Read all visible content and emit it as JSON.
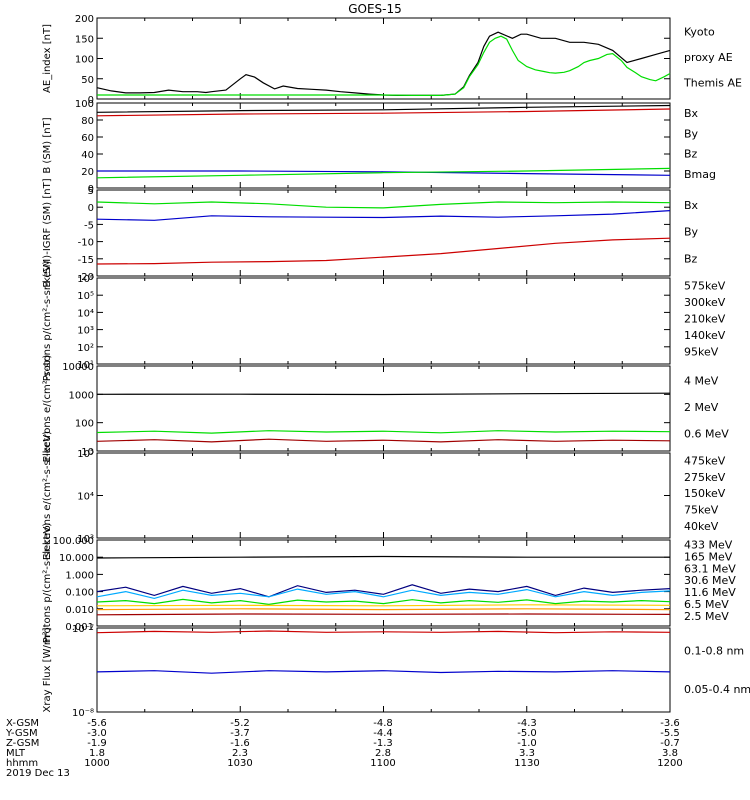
{
  "title": "GOES-15",
  "colors": {
    "black": "#000000",
    "red": "#cc0000",
    "darkred": "#a00000",
    "green": "#00dd00",
    "blue": "#0000cc",
    "orange": "#ff9900",
    "gold": "#ffcc00",
    "cyan": "#00aaff",
    "navy": "#000080",
    "purple": "#8800aa"
  },
  "chart_data": [
    {
      "type": "line",
      "id": "ae",
      "ylabel": "AE_index [nT]",
      "ylim": [
        0,
        200
      ],
      "ticks": [
        "0",
        "50",
        "100",
        "150",
        "200"
      ],
      "legend": [
        {
          "label": "Kyoto",
          "color": "green"
        },
        {
          "label": "proxy AE",
          "color": "green"
        },
        {
          "label": "Themis AE",
          "color": "black"
        }
      ],
      "series": [
        {
          "name": "Themis AE",
          "color": "black",
          "x": [
            0,
            5,
            10,
            15,
            20,
            25,
            30,
            35,
            38,
            40,
            45,
            50,
            52,
            55,
            58,
            62,
            65,
            70,
            75,
            80,
            85,
            90,
            95,
            100,
            105,
            110,
            115,
            120,
            125,
            128,
            130,
            133,
            135,
            137,
            140,
            145,
            148,
            150,
            155,
            160,
            165,
            170,
            175,
            180,
            185,
            190,
            195,
            200
          ],
          "y": [
            28,
            20,
            15,
            15,
            16,
            22,
            18,
            18,
            16,
            18,
            22,
            50,
            60,
            54,
            40,
            25,
            32,
            26,
            24,
            22,
            18,
            15,
            12,
            10,
            9,
            9,
            9,
            9,
            12,
            30,
            58,
            90,
            130,
            155,
            165,
            150,
            160,
            160,
            150,
            150,
            140,
            140,
            135,
            120,
            90,
            100,
            110,
            120
          ]
        },
        {
          "name": "Kyoto proxy AE",
          "color": "green",
          "x": [
            0,
            20,
            40,
            60,
            80,
            100,
            110,
            120,
            125,
            128,
            130,
            133,
            135,
            137,
            139,
            141,
            143,
            145,
            147,
            150,
            153,
            156,
            158,
            160,
            163,
            165,
            168,
            170,
            172,
            175,
            178,
            180,
            183,
            185,
            188,
            190,
            193,
            195,
            198,
            200
          ],
          "y": [
            10,
            10,
            10,
            10,
            10,
            10,
            9,
            9,
            12,
            28,
            55,
            85,
            115,
            140,
            150,
            155,
            148,
            120,
            95,
            80,
            72,
            68,
            65,
            64,
            66,
            70,
            80,
            90,
            95,
            100,
            110,
            112,
            95,
            78,
            65,
            55,
            48,
            45,
            55,
            63
          ]
        }
      ]
    },
    {
      "type": "line",
      "id": "bsm",
      "ylabel": "B (SM) [nT]",
      "ylim": [
        0,
        100
      ],
      "ticks": [
        "0",
        "20",
        "40",
        "60",
        "80",
        "100"
      ],
      "legend": [
        {
          "label": "Bx",
          "color": "blue"
        },
        {
          "label": "By",
          "color": "green"
        },
        {
          "label": "Bz",
          "color": "red"
        },
        {
          "label": "Bmag",
          "color": "black"
        }
      ],
      "series": [
        {
          "name": "Bx",
          "color": "blue",
          "x": [
            0,
            50,
            100,
            150,
            200
          ],
          "y": [
            20,
            20,
            19,
            17,
            15
          ]
        },
        {
          "name": "By",
          "color": "green",
          "x": [
            0,
            50,
            100,
            150,
            200
          ],
          "y": [
            12,
            15,
            18,
            20,
            23
          ]
        },
        {
          "name": "Bz",
          "color": "red",
          "x": [
            0,
            50,
            100,
            150,
            200
          ],
          "y": [
            85,
            87,
            88,
            90,
            93
          ]
        },
        {
          "name": "Bmag",
          "color": "black",
          "x": [
            0,
            50,
            100,
            150,
            200
          ],
          "y": [
            89,
            91,
            92,
            95,
            97
          ]
        }
      ]
    },
    {
      "type": "line",
      "id": "bigrf",
      "ylabel": "B (SM)-IGRF (SM) [nT]",
      "ylim": [
        -20,
        5
      ],
      "ticks": [
        "-20",
        "-15",
        "-10",
        "-5",
        "0",
        "5"
      ],
      "legend": [
        {
          "label": "Bx",
          "color": "blue"
        },
        {
          "label": "By",
          "color": "green"
        },
        {
          "label": "Bz",
          "color": "red"
        }
      ],
      "series": [
        {
          "name": "Bx",
          "color": "blue",
          "x": [
            0,
            20,
            40,
            60,
            80,
            100,
            120,
            140,
            160,
            180,
            200
          ],
          "y": [
            -3.5,
            -3.8,
            -2.5,
            -2.8,
            -2.9,
            -3.0,
            -2.6,
            -2.9,
            -2.5,
            -2.0,
            -1.0
          ]
        },
        {
          "name": "By",
          "color": "green",
          "x": [
            0,
            20,
            40,
            60,
            80,
            100,
            120,
            140,
            160,
            180,
            200
          ],
          "y": [
            1.5,
            1.0,
            1.5,
            1.0,
            0.0,
            -0.2,
            0.8,
            1.5,
            1.3,
            1.5,
            1.3
          ]
        },
        {
          "name": "Bz",
          "color": "red",
          "x": [
            0,
            20,
            40,
            60,
            80,
            100,
            120,
            140,
            160,
            180,
            200
          ],
          "y": [
            -16.5,
            -16.4,
            -16.0,
            -15.8,
            -15.5,
            -14.5,
            -13.5,
            -12,
            -10.5,
            -9.5,
            -9
          ]
        }
      ]
    },
    {
      "type": "line",
      "id": "protons1",
      "log": true,
      "ylabel": "Protons p/(cm²-s-sr-keV)",
      "ylim": [
        10,
        1000000
      ],
      "ticks": [
        "10¹",
        "10²",
        "10³",
        "10⁴",
        "10⁵",
        "10⁶"
      ],
      "legend": [
        {
          "label": "575keV",
          "color": "darkred"
        },
        {
          "label": "300keV",
          "color": "orange"
        },
        {
          "label": "210keV",
          "color": "green"
        },
        {
          "label": "140keV",
          "color": "cyan"
        },
        {
          "label": "95keV",
          "color": "black"
        }
      ],
      "series": []
    },
    {
      "type": "line",
      "id": "electrons1",
      "log": true,
      "ylabel": "Electrons e/(cm²-s-sr)",
      "ylim": [
        10,
        10000
      ],
      "ticks": [
        "10",
        "100",
        "1000",
        "10000"
      ],
      "legend": [
        {
          "label": "4 MeV",
          "color": "darkred"
        },
        {
          "label": "2 MeV",
          "color": "green"
        },
        {
          "label": "0.6 MeV",
          "color": "black"
        }
      ],
      "series": [
        {
          "name": "0.6 MeV",
          "color": "black",
          "x": [
            0,
            50,
            100,
            150,
            200
          ],
          "y": [
            1000,
            1010,
            990,
            1050,
            1100
          ]
        },
        {
          "name": "2 MeV",
          "color": "green",
          "x": [
            0,
            20,
            40,
            60,
            80,
            100,
            120,
            140,
            160,
            180,
            200
          ],
          "y": [
            45,
            50,
            43,
            52,
            47,
            50,
            44,
            52,
            47,
            50,
            48
          ]
        },
        {
          "name": "4 MeV",
          "color": "darkred",
          "x": [
            0,
            20,
            40,
            60,
            80,
            100,
            120,
            140,
            160,
            180,
            200
          ],
          "y": [
            22,
            25,
            21,
            26,
            22,
            24,
            21,
            25,
            22,
            24,
            23
          ]
        }
      ]
    },
    {
      "type": "line",
      "id": "electrons2",
      "log": true,
      "ylabel": "Electrons e/(cm²-s-sr-keV)",
      "ylim": [
        1000,
        100000
      ],
      "ticks": [
        "10³",
        "10⁴",
        "10⁵"
      ],
      "legend": [
        {
          "label": "475keV",
          "color": "darkred"
        },
        {
          "label": "275keV",
          "color": "orange"
        },
        {
          "label": "150keV",
          "color": "green"
        },
        {
          "label": "75keV",
          "color": "blue"
        },
        {
          "label": "40keV",
          "color": "black"
        }
      ],
      "series": []
    },
    {
      "type": "line",
      "id": "protons2",
      "log": true,
      "ylabel": "Protons p/(cm²-s-sr-keV)",
      "ylim": [
        0.001,
        100
      ],
      "ticks": [
        "0.001",
        "0.010",
        "0.100",
        "1.000",
        "10.000",
        "100.000"
      ],
      "legend": [
        {
          "label": "433 MeV",
          "color": "darkred"
        },
        {
          "label": "165 MeV",
          "color": "orange"
        },
        {
          "label": "63.1 MeV",
          "color": "gold"
        },
        {
          "label": "30.6 MeV",
          "color": "green"
        },
        {
          "label": "11.6 MeV",
          "color": "cyan"
        },
        {
          "label": "6.5 MeV",
          "color": "purple"
        },
        {
          "label": "2.5 MeV",
          "color": "black"
        }
      ],
      "series": [
        {
          "name": "2.5 MeV",
          "color": "black",
          "x": [
            0,
            50,
            100,
            150,
            200
          ],
          "y": [
            9,
            10,
            11,
            10,
            10
          ]
        },
        {
          "name": "6.5 MeV",
          "color": "navy",
          "x": [
            0,
            10,
            20,
            30,
            40,
            50,
            60,
            70,
            80,
            90,
            100,
            110,
            120,
            130,
            140,
            150,
            160,
            170,
            180,
            190,
            200
          ],
          "y": [
            0.1,
            0.18,
            0.06,
            0.2,
            0.08,
            0.15,
            0.05,
            0.22,
            0.09,
            0.12,
            0.07,
            0.25,
            0.08,
            0.14,
            0.1,
            0.2,
            0.06,
            0.16,
            0.09,
            0.12,
            0.15
          ]
        },
        {
          "name": "11.6 MeV",
          "color": "cyan",
          "x": [
            0,
            10,
            20,
            30,
            40,
            50,
            60,
            70,
            80,
            90,
            100,
            110,
            120,
            130,
            140,
            150,
            160,
            170,
            180,
            190,
            200
          ],
          "y": [
            0.05,
            0.1,
            0.04,
            0.12,
            0.06,
            0.08,
            0.05,
            0.14,
            0.07,
            0.1,
            0.05,
            0.12,
            0.06,
            0.09,
            0.07,
            0.13,
            0.05,
            0.1,
            0.06,
            0.09,
            0.11
          ]
        },
        {
          "name": "30.6 MeV",
          "color": "green",
          "x": [
            0,
            10,
            20,
            30,
            40,
            50,
            60,
            70,
            80,
            90,
            100,
            110,
            120,
            130,
            140,
            150,
            160,
            170,
            180,
            190,
            200
          ],
          "y": [
            0.025,
            0.03,
            0.02,
            0.035,
            0.022,
            0.03,
            0.018,
            0.032,
            0.025,
            0.028,
            0.02,
            0.034,
            0.022,
            0.03,
            0.024,
            0.033,
            0.02,
            0.028,
            0.025,
            0.03,
            0.026
          ]
        },
        {
          "name": "63.1 MeV",
          "color": "gold",
          "x": [
            0,
            50,
            100,
            150,
            200
          ],
          "y": [
            0.015,
            0.016,
            0.015,
            0.017,
            0.016
          ]
        },
        {
          "name": "165 MeV",
          "color": "orange",
          "x": [
            0,
            50,
            100,
            150,
            200
          ],
          "y": [
            0.009,
            0.01,
            0.009,
            0.01,
            0.009
          ]
        },
        {
          "name": "433 MeV",
          "color": "darkred",
          "x": [
            0,
            50,
            100,
            150,
            200
          ],
          "y": [
            0.0045,
            0.005,
            0.0048,
            0.005,
            0.0047
          ]
        }
      ]
    },
    {
      "type": "line",
      "id": "xray",
      "log": true,
      "ylabel": "Xray Flux [W/m²]",
      "ylim": [
        1e-08,
        1e-07
      ],
      "ticks": [
        "10⁻⁸",
        "10⁻⁷"
      ],
      "legend": [
        {
          "label": "0.1-0.8 nm",
          "color": "red"
        },
        {
          "label": "0.05-0.4 nm",
          "color": "blue"
        }
      ],
      "series": [
        {
          "name": "0.1-0.8 nm",
          "color": "red",
          "x": [
            0,
            20,
            40,
            60,
            80,
            100,
            120,
            140,
            160,
            180,
            200
          ],
          "y": [
            8.8e-08,
            9.1e-08,
            8.9e-08,
            9.2e-08,
            8.9e-08,
            9e-08,
            8.9e-08,
            9.1e-08,
            8.8e-08,
            9e-08,
            8.9e-08
          ]
        },
        {
          "name": "0.05-0.4 nm",
          "color": "blue",
          "x": [
            0,
            20,
            40,
            60,
            80,
            100,
            120,
            140,
            160,
            180,
            200
          ],
          "y": [
            3e-08,
            3.1e-08,
            2.9e-08,
            3.1e-08,
            3e-08,
            3.1e-08,
            2.95e-08,
            3.05e-08,
            3e-08,
            3.1e-08,
            3e-08
          ]
        }
      ]
    }
  ],
  "bottom_axis": {
    "rows": [
      {
        "label": "X-GSM",
        "values": [
          "-5.6",
          "-5.2",
          "-4.8",
          "-4.3",
          "-3.6"
        ]
      },
      {
        "label": "Y-GSM",
        "values": [
          "-3.0",
          "-3.7",
          "-4.4",
          "-5.0",
          "-5.5"
        ]
      },
      {
        "label": "Z-GSM",
        "values": [
          "-1.9",
          "-1.6",
          "-1.3",
          "-1.0",
          "-0.7"
        ]
      },
      {
        "label": "MLT",
        "values": [
          "1.8",
          "2.3",
          "2.8",
          "3.3",
          "3.8"
        ]
      },
      {
        "label": "hhmm",
        "values": [
          "1000",
          "1030",
          "1100",
          "1130",
          "1200"
        ]
      }
    ],
    "date": "2019 Dec 13"
  }
}
